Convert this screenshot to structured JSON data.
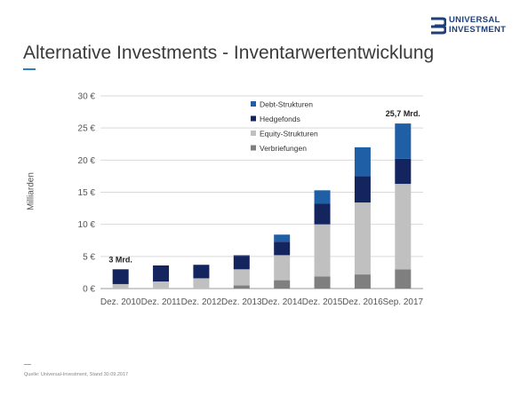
{
  "header": {
    "title": "Alternative Investments - Inventarwertentwicklung",
    "logo_line1": "UNIVERSAL",
    "logo_line2": "INVESTMENT",
    "brand_color": "#1d3f7a"
  },
  "footer": {
    "source": "Quelle: Universal-Investment, Stand 30.09.2017"
  },
  "chart_data": {
    "type": "bar",
    "stacked": true,
    "title": "",
    "xlabel": "",
    "ylabel": "Milliarden",
    "ylim": [
      0,
      30
    ],
    "yticks": [
      "0 €",
      "5 €",
      "10 €",
      "15 €",
      "20 €",
      "25 €",
      "30 €"
    ],
    "grid": true,
    "legend_position": "top-left",
    "categories": [
      "Dez. 2010",
      "Dez. 2011",
      "Dez. 2012",
      "Dez. 2013",
      "Dez. 2014",
      "Dez. 2015",
      "Dez. 2016",
      "Sep. 2017"
    ],
    "series": [
      {
        "name": "Verbriefungen",
        "color": "#7f7f7f",
        "values": [
          0.0,
          0.0,
          0.0,
          0.5,
          1.3,
          1.9,
          2.2,
          3.0
        ]
      },
      {
        "name": "Equity-Strukturen",
        "color": "#c0c0c0",
        "values": [
          0.7,
          1.1,
          1.6,
          2.5,
          3.9,
          8.1,
          11.2,
          13.3
        ]
      },
      {
        "name": "Hedgefonds",
        "color": "#14245e",
        "values": [
          2.3,
          2.5,
          2.1,
          2.1,
          2.1,
          3.2,
          4.1,
          3.9
        ]
      },
      {
        "name": "Debt-Strukturen",
        "color": "#1f5fa6",
        "values": [
          0.0,
          0.0,
          0.0,
          0.1,
          1.1,
          2.1,
          4.5,
          5.5
        ]
      }
    ],
    "legend_order": [
      "Debt-Strukturen",
      "Hedgefonds",
      "Equity-Strukturen",
      "Verbriefungen"
    ],
    "annotations": [
      {
        "category": "Dez. 2010",
        "text": "3 Mrd."
      },
      {
        "category": "Sep. 2017",
        "text": "25,7 Mrd."
      }
    ]
  }
}
